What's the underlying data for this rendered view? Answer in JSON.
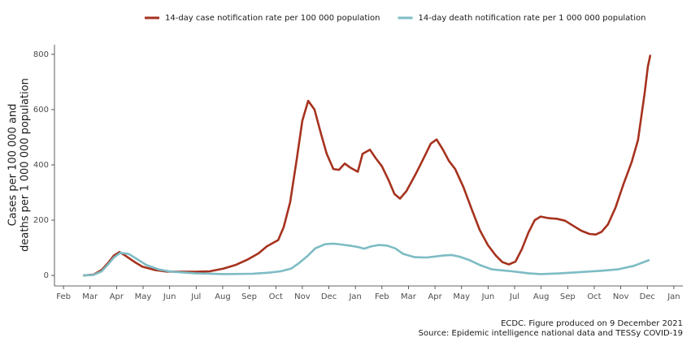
{
  "chart_data": {
    "type": "line",
    "y_label": [
      "Cases per 100 000 and",
      "deaths per 1 000 000 population"
    ],
    "footer": [
      "ECDC. Figure produced on 9 December 2021",
      "Source: Epidemic intelligence national data and TESSy COVID-19"
    ],
    "xlim": [
      -0.34,
      23.34
    ],
    "xticks": [
      {
        "value": 0,
        "label": "Feb"
      },
      {
        "value": 1,
        "label": "Mar"
      },
      {
        "value": 2,
        "label": "Apr"
      },
      {
        "value": 3,
        "label": "May"
      },
      {
        "value": 4,
        "label": "Jun"
      },
      {
        "value": 5,
        "label": "Jul"
      },
      {
        "value": 6,
        "label": "Aug"
      },
      {
        "value": 7,
        "label": "Sep"
      },
      {
        "value": 8,
        "label": "Oct"
      },
      {
        "value": 9,
        "label": "Nov"
      },
      {
        "value": 10,
        "label": "Dec"
      },
      {
        "value": 11,
        "label": "Jan"
      },
      {
        "value": 12,
        "label": "Feb"
      },
      {
        "value": 13,
        "label": "Mar"
      },
      {
        "value": 14,
        "label": "Apr"
      },
      {
        "value": 15,
        "label": "May"
      },
      {
        "value": 16,
        "label": "Jun"
      },
      {
        "value": 17,
        "label": "Jul"
      },
      {
        "value": 18,
        "label": "Aug"
      },
      {
        "value": 19,
        "label": "Sep"
      },
      {
        "value": 20,
        "label": "Oct"
      },
      {
        "value": 21,
        "label": "Nov"
      },
      {
        "value": 22,
        "label": "Dec"
      },
      {
        "value": 23,
        "label": "Jan"
      }
    ],
    "ylim": [
      -38,
      835
    ],
    "yticks": [
      0,
      200,
      400,
      600,
      800
    ],
    "grid": false,
    "legend": "top",
    "series": [
      {
        "name": "14-day case notification rate per 100 000 population",
        "color": "#a6321e",
        "x": [
          0.77,
          1.13,
          1.44,
          1.68,
          1.9,
          2.11,
          2.36,
          2.66,
          2.97,
          3.43,
          3.89,
          4.96,
          5.51,
          6.03,
          6.49,
          6.95,
          7.35,
          7.66,
          8.09,
          8.3,
          8.54,
          8.79,
          9.0,
          9.22,
          9.46,
          9.71,
          9.92,
          10.17,
          10.38,
          10.6,
          10.81,
          11.09,
          11.27,
          11.55,
          11.76,
          12.0,
          12.25,
          12.47,
          12.68,
          12.92,
          13.29,
          13.6,
          13.84,
          14.06,
          14.3,
          14.52,
          14.76,
          15.07,
          15.38,
          15.68,
          15.99,
          16.29,
          16.54,
          16.78,
          17.03,
          17.27,
          17.52,
          17.76,
          17.98,
          18.29,
          18.59,
          18.9,
          19.2,
          19.51,
          19.82,
          20.06,
          20.28,
          20.52,
          20.8,
          21.1,
          21.41,
          21.65,
          21.9,
          22.02,
          22.11
        ],
        "values": [
          0,
          3,
          20,
          45,
          72,
          85,
          70,
          50,
          32,
          20,
          14,
          13,
          15,
          25,
          38,
          58,
          80,
          105,
          128,
          175,
          265,
          420,
          560,
          632,
          600,
          510,
          440,
          385,
          382,
          405,
          390,
          375,
          440,
          455,
          425,
          395,
          345,
          295,
          278,
          305,
          370,
          430,
          477,
          492,
          455,
          415,
          385,
          320,
          240,
          165,
          110,
          72,
          48,
          40,
          50,
          95,
          155,
          200,
          213,
          207,
          205,
          198,
          180,
          162,
          150,
          148,
          158,
          185,
          245,
          330,
          410,
          490,
          660,
          755,
          795
        ]
      },
      {
        "name": "14-day death notification rate per 1 000 000 population",
        "color": "#7dbcc4",
        "x": [
          0.77,
          1.13,
          1.44,
          1.68,
          1.9,
          2.14,
          2.45,
          2.76,
          3.12,
          3.58,
          4.04,
          4.96,
          6.03,
          7.11,
          7.72,
          8.18,
          8.58,
          8.88,
          9.19,
          9.49,
          9.86,
          10.17,
          10.47,
          10.78,
          11.09,
          11.33,
          11.58,
          11.88,
          12.19,
          12.5,
          12.8,
          13.23,
          13.69,
          14.3,
          14.61,
          14.92,
          15.31,
          15.68,
          16.14,
          16.91,
          17.52,
          17.98,
          18.74,
          19.66,
          20.28,
          20.89,
          21.5,
          22.05
        ],
        "values": [
          0,
          2,
          15,
          40,
          65,
          82,
          78,
          60,
          38,
          22,
          14,
          8,
          5,
          6,
          10,
          15,
          25,
          45,
          70,
          98,
          113,
          115,
          112,
          108,
          103,
          97,
          105,
          110,
          108,
          98,
          78,
          66,
          65,
          72,
          74,
          68,
          55,
          38,
          22,
          15,
          8,
          5,
          8,
          13,
          17,
          22,
          35,
          55
        ]
      }
    ]
  }
}
